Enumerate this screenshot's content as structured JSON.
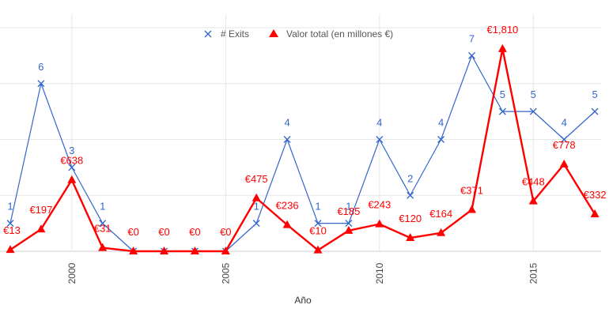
{
  "chart_data": {
    "type": "line",
    "xlabel": "Año",
    "ylabel": "",
    "x": [
      1998,
      1999,
      2000,
      2001,
      2002,
      2003,
      2004,
      2005,
      2006,
      2007,
      2008,
      2009,
      2010,
      2011,
      2012,
      2013,
      2014,
      2015,
      2016,
      2017
    ],
    "x_ticks": [
      "2000",
      "2005",
      "2010",
      "2015"
    ],
    "grid": true,
    "legend_position": "top",
    "series": [
      {
        "name": "# Exits",
        "color": "#3366cc",
        "marker": "x",
        "axis": "left",
        "ylim": [
          0,
          8
        ],
        "values": [
          1,
          6,
          3,
          1,
          0,
          0,
          0,
          0,
          1,
          4,
          1,
          1,
          4,
          2,
          4,
          7,
          5,
          5,
          4,
          5
        ],
        "labels": [
          "1",
          "6",
          "3",
          "1",
          "",
          "",
          "",
          "",
          "1",
          "4",
          "1",
          "1",
          "4",
          "2",
          "4",
          "7",
          "5",
          "5",
          "4",
          "5"
        ]
      },
      {
        "name": "Valor total (en millones €)",
        "color": "#ff0000",
        "marker": "triangle",
        "axis": "right",
        "ylim": [
          0,
          2000
        ],
        "values": [
          13,
          197,
          638,
          31,
          0,
          0,
          0,
          0,
          475,
          236,
          10,
          185,
          243,
          120,
          164,
          371,
          1810,
          448,
          778,
          332
        ],
        "labels": [
          "€13",
          "€197",
          "€638",
          "€31",
          "€0",
          "€0",
          "€0",
          "€0",
          "€475",
          "€236",
          "€10",
          "€185",
          "€243",
          "€120",
          "€164",
          "€371",
          "€1,810",
          "€448",
          "€778",
          "€332"
        ]
      }
    ]
  }
}
